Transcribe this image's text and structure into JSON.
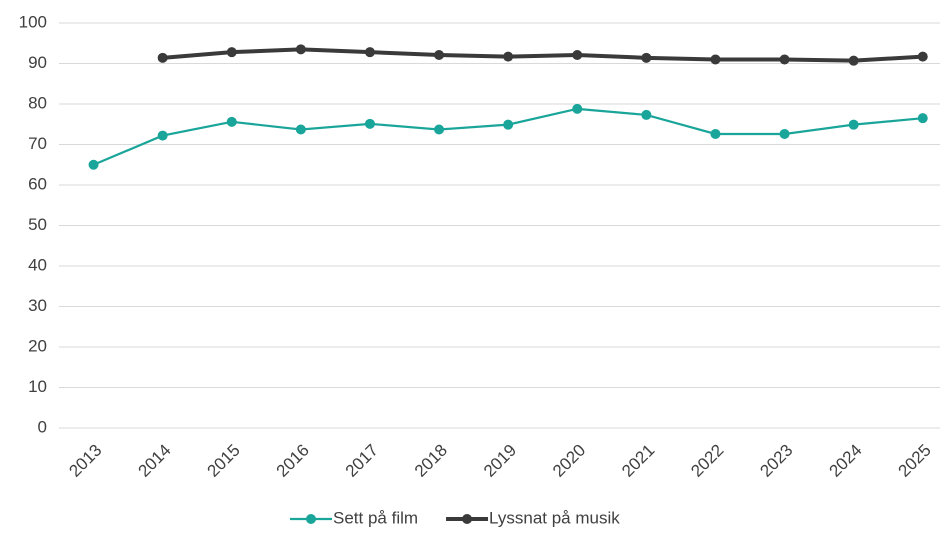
{
  "chart_data": {
    "type": "line",
    "categories": [
      "2013",
      "2014",
      "2015",
      "2016",
      "2017",
      "2018",
      "2019",
      "2020",
      "2021",
      "2022",
      "2023",
      "2024",
      "2025"
    ],
    "series": [
      {
        "name": "Sett på film",
        "color": "#1aa59a",
        "values": [
          65,
          72.2,
          75.6,
          73.7,
          75.1,
          73.7,
          74.9,
          78.8,
          77.3,
          72.6,
          72.6,
          74.9,
          76.5
        ]
      },
      {
        "name": "Lyssnat på musik",
        "color": "#3a3a3a",
        "values": [
          null,
          91.4,
          92.8,
          93.5,
          92.8,
          92.1,
          91.7,
          92.1,
          91.4,
          91.0,
          91.0,
          90.7,
          91.7
        ]
      }
    ],
    "ylim": [
      0,
      100
    ],
    "yticks": [
      0,
      10,
      20,
      30,
      40,
      50,
      60,
      70,
      80,
      90,
      100
    ],
    "grid": true,
    "legend": "bottom"
  }
}
